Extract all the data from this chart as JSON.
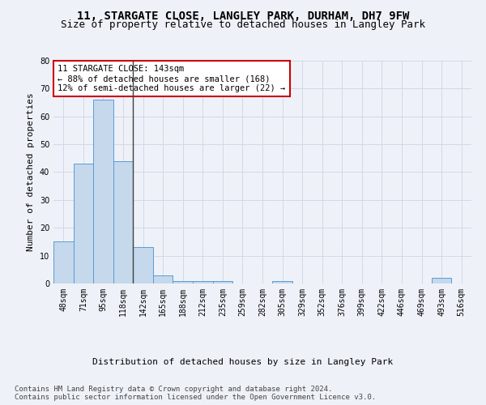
{
  "title": "11, STARGATE CLOSE, LANGLEY PARK, DURHAM, DH7 9FW",
  "subtitle": "Size of property relative to detached houses in Langley Park",
  "xlabel": "Distribution of detached houses by size in Langley Park",
  "ylabel": "Number of detached properties",
  "bar_labels": [
    "48sqm",
    "71sqm",
    "95sqm",
    "118sqm",
    "142sqm",
    "165sqm",
    "188sqm",
    "212sqm",
    "235sqm",
    "259sqm",
    "282sqm",
    "305sqm",
    "329sqm",
    "352sqm",
    "376sqm",
    "399sqm",
    "422sqm",
    "446sqm",
    "469sqm",
    "493sqm",
    "516sqm"
  ],
  "bar_values": [
    15,
    43,
    66,
    44,
    13,
    3,
    1,
    1,
    1,
    0,
    0,
    1,
    0,
    0,
    0,
    0,
    0,
    0,
    0,
    2,
    0
  ],
  "bar_color": "#c5d8ec",
  "bar_edge_color": "#5b9bd5",
  "vline_x_index": 4,
  "vline_color": "#404040",
  "annotation_text": "11 STARGATE CLOSE: 143sqm\n← 88% of detached houses are smaller (168)\n12% of semi-detached houses are larger (22) →",
  "annotation_box_color": "#ffffff",
  "annotation_box_edge": "#cc0000",
  "ylim": [
    0,
    80
  ],
  "yticks": [
    0,
    10,
    20,
    30,
    40,
    50,
    60,
    70,
    80
  ],
  "grid_color": "#d0d8e8",
  "background_color": "#eef2f8",
  "footer": "Contains HM Land Registry data © Crown copyright and database right 2024.\nContains public sector information licensed under the Open Government Licence v3.0.",
  "title_fontsize": 10,
  "subtitle_fontsize": 9,
  "axis_label_fontsize": 8,
  "tick_fontsize": 7,
  "footer_fontsize": 6.5,
  "annotation_fontsize": 7.5
}
